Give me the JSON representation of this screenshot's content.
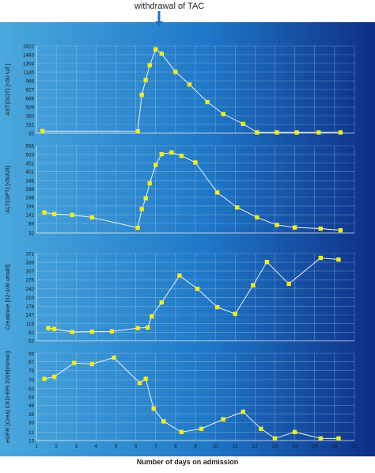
{
  "annotation": "withdrawal of TAC",
  "xlabel": "Number of days on admission",
  "colors": {
    "bg_left": "#4aa8dc",
    "bg_mid": "#1f78c8",
    "bg_right": "#0d2f86",
    "line": "#ffffff",
    "marker": "#f2ee1a",
    "arrow": "#1a6fd0"
  },
  "chart_data": [
    {
      "type": "line",
      "ylabel": "AST(GOT) [<50 U/l ]",
      "yticks": [
        32,
        191,
        350,
        509,
        668,
        827,
        986,
        1145,
        1304,
        1463,
        1622
      ],
      "ylim": [
        32,
        1622
      ],
      "xlim": [
        1,
        17
      ],
      "xticks": [
        1,
        2,
        3,
        4,
        5,
        6,
        7,
        8,
        9,
        10,
        11,
        12,
        13,
        14,
        15,
        16,
        17
      ],
      "grid": true,
      "x": [
        1.3,
        6.1,
        6.3,
        6.5,
        6.7,
        7.0,
        7.3,
        8.0,
        8.7,
        9.6,
        10.4,
        11.4,
        12.1,
        13.1,
        14.1,
        15.2,
        16.3
      ],
      "y": [
        70,
        65,
        730,
        1000,
        1270,
        1560,
        1480,
        1150,
        920,
        600,
        380,
        200,
        45,
        45,
        45,
        45,
        45
      ]
    },
    {
      "type": "line",
      "ylabel": "ALT(GPT) [<50U/l]",
      "yticks": [
        32,
        89,
        141,
        194,
        246,
        296,
        346,
        401,
        451,
        503,
        555
      ],
      "ylim": [
        32,
        555
      ],
      "xlim": [
        1,
        17
      ],
      "xticks": [
        1,
        2,
        3,
        4,
        5,
        6,
        7,
        8,
        9,
        10,
        11,
        12,
        13,
        14,
        15,
        16,
        17
      ],
      "grid": true,
      "x": [
        1.4,
        1.9,
        2.8,
        3.8,
        6.1,
        6.3,
        6.5,
        6.7,
        7.0,
        7.3,
        7.8,
        8.3,
        9.0,
        10.1,
        11.1,
        12.1,
        13.1,
        14.0,
        15.3,
        16.3
      ],
      "y": [
        155,
        145,
        140,
        125,
        63,
        175,
        240,
        330,
        440,
        505,
        515,
        495,
        455,
        275,
        185,
        125,
        80,
        65,
        58,
        48
      ]
    },
    {
      "type": "line",
      "ylabel": "Creatinine [62-106 umol/l]",
      "yticks": [
        52,
        82,
        115,
        147,
        178,
        210,
        242,
        275,
        307,
        339,
        371
      ],
      "ylim": [
        52,
        371
      ],
      "xlim": [
        1,
        17
      ],
      "xticks": [
        1,
        2,
        3,
        4,
        5,
        6,
        7,
        8,
        9,
        10,
        11,
        12,
        13,
        14,
        15,
        16,
        17
      ],
      "grid": true,
      "x": [
        1.6,
        1.9,
        2.8,
        3.8,
        4.8,
        6.1,
        6.6,
        6.8,
        7.3,
        8.2,
        9.1,
        10.1,
        11.0,
        11.9,
        12.6,
        13.7,
        15.3,
        16.2
      ],
      "y": [
        98,
        95,
        84,
        85,
        86,
        98,
        100,
        141,
        192,
        290,
        242,
        175,
        150,
        255,
        340,
        260,
        355,
        349
      ]
    },
    {
      "type": "line",
      "ylabel": "eGFR (Crea) CKD-EPI 2009[ml/min]",
      "yticks": [
        13,
        21,
        30,
        38,
        46,
        54,
        62,
        70,
        79,
        87,
        95
      ],
      "ylim": [
        13,
        95
      ],
      "xlim": [
        1,
        17
      ],
      "xticks": [
        1,
        2,
        3,
        4,
        5,
        6,
        7,
        8,
        9,
        10,
        11,
        12,
        13,
        14,
        15,
        16,
        17
      ],
      "xticklabels": [
        "1",
        "2",
        "3",
        "4",
        "5",
        "6",
        "7",
        "8",
        "9",
        "10",
        "11",
        "12",
        "13",
        "14",
        "15",
        "16",
        "17"
      ],
      "grid": true,
      "x": [
        1.4,
        1.9,
        2.9,
        3.8,
        4.9,
        6.2,
        6.5,
        6.9,
        7.4,
        8.3,
        9.3,
        10.4,
        11.4,
        12.3,
        13.0,
        14.0,
        15.3,
        16.2
      ],
      "y": [
        71,
        73,
        86,
        85,
        91,
        67,
        71,
        43,
        31,
        21,
        24,
        33,
        40,
        24,
        15,
        21,
        15,
        15
      ]
    }
  ]
}
